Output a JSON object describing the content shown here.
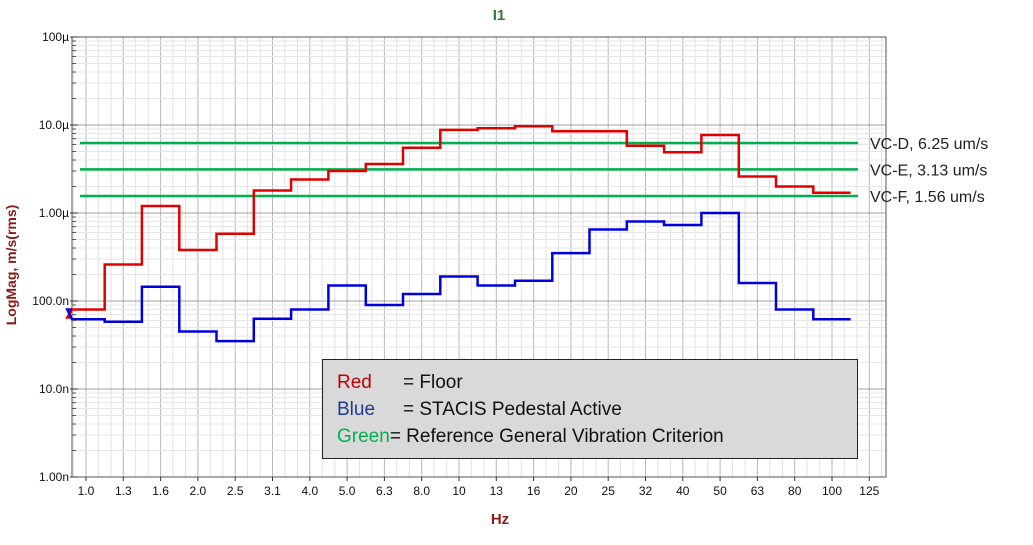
{
  "chart_data": {
    "type": "line",
    "title": "I1",
    "xlabel": "Hz",
    "ylabel": "LogMag, m/s(rms)",
    "x_ticks": [
      "1.0",
      "1.3",
      "1.6",
      "2.0",
      "2.5",
      "3.1",
      "4.0",
      "5.0",
      "6.3",
      "8.0",
      "10",
      "13",
      "16",
      "20",
      "25",
      "32",
      "40",
      "50",
      "63",
      "80",
      "100",
      "125"
    ],
    "y_ticks": [
      {
        "label": "100µ",
        "value": 0.0001
      },
      {
        "label": "10.0µ",
        "value": 1e-05
      },
      {
        "label": "1.00µ",
        "value": 1e-06
      },
      {
        "label": "100.0n",
        "value": 1e-07
      },
      {
        "label": "10.0n",
        "value": 1e-08
      },
      {
        "label": "1.00n",
        "value": 1e-09
      }
    ],
    "ylim": [
      1e-09,
      0.0001
    ],
    "y_scale": "log",
    "grid": true,
    "bands": [
      "0.8",
      "1.0",
      "1.3",
      "1.6",
      "2.0",
      "2.5",
      "3.1",
      "4.0",
      "5.0",
      "6.3",
      "8.0",
      "10",
      "13",
      "16",
      "20",
      "25",
      "32",
      "40",
      "50",
      "63",
      "80",
      "100",
      "125"
    ],
    "series": [
      {
        "name": "Red",
        "color": "#e00000",
        "values": [
          6.5e-08,
          8e-08,
          2.6e-07,
          1.2e-06,
          3.8e-07,
          5.8e-07,
          1.8e-06,
          2.4e-06,
          3e-06,
          3.6e-06,
          5.5e-06,
          8.8e-06,
          9.2e-06,
          9.7e-06,
          8.5e-06,
          8.5e-06,
          5.8e-06,
          4.9e-06,
          7.7e-06,
          2.6e-06,
          2e-06,
          1.7e-06
        ]
      },
      {
        "name": "Blue",
        "color": "#0000dd",
        "values": [
          8e-08,
          6.2e-08,
          5.8e-08,
          1.45e-07,
          4.5e-08,
          3.5e-08,
          6.3e-08,
          8e-08,
          1.5e-07,
          9e-08,
          1.2e-07,
          1.9e-07,
          1.5e-07,
          1.7e-07,
          3.5e-07,
          6.5e-07,
          8e-07,
          7.3e-07,
          1e-06,
          1.6e-07,
          8e-08,
          6.2e-08
        ]
      }
    ],
    "reference_lines": [
      {
        "label": "VC-D, 6.25 um/s",
        "value": 6.25e-06,
        "color": "#00b050"
      },
      {
        "label": "VC-E, 3.13 um/s",
        "value": 3.13e-06,
        "color": "#00b050"
      },
      {
        "label": "VC-F, 1.56 um/s",
        "value": 1.56e-06,
        "color": "#00b050"
      }
    ],
    "legend": {
      "placement": "bottom-right",
      "rows": [
        {
          "key": "Red",
          "text": "= Floor",
          "color": "#c00000"
        },
        {
          "key": "Blue",
          "text": "= STACIS  Pedestal Active",
          "color": "#1f3a93"
        },
        {
          "key": "Green",
          "text": "= Reference General Vibration Criterion",
          "color": "#00b050"
        }
      ]
    }
  }
}
